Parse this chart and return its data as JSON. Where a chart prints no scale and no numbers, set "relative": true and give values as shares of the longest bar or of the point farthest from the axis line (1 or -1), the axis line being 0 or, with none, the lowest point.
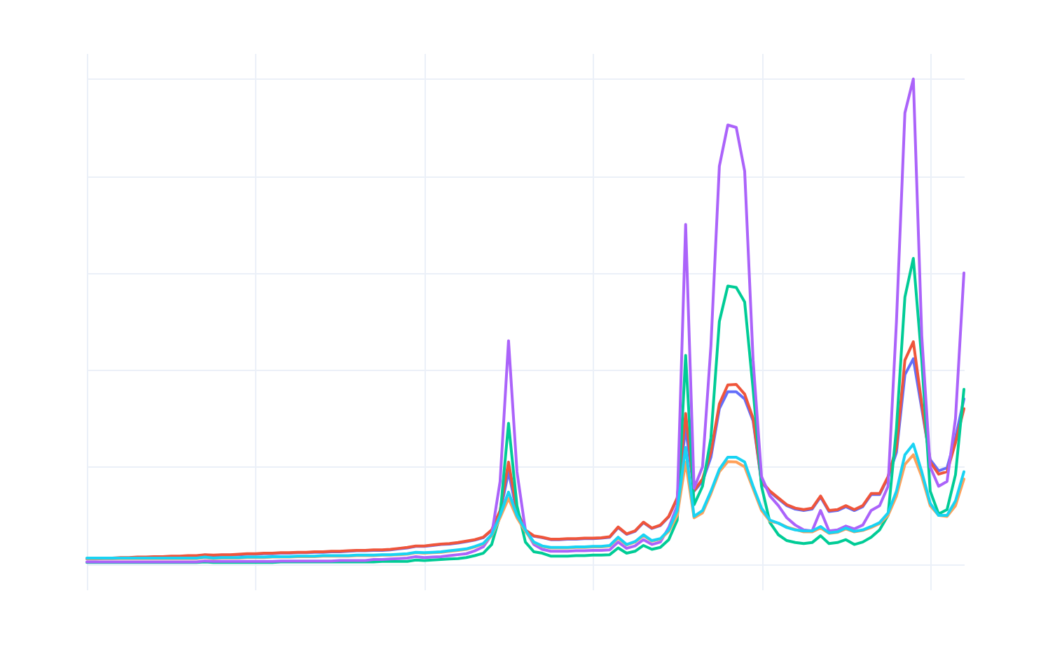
{
  "chart_data": {
    "type": "line",
    "relative": true,
    "grid": true,
    "categories": [
      null,
      null,
      null,
      null,
      null,
      null,
      null,
      null,
      null,
      null,
      null,
      null,
      null,
      null,
      null,
      null,
      null,
      null,
      null,
      null,
      null,
      null,
      null,
      null,
      null,
      null,
      null,
      null,
      null,
      null,
      null,
      null,
      null,
      null,
      null,
      null,
      null,
      null,
      null,
      null,
      null,
      null,
      null,
      null,
      null,
      null,
      null,
      null,
      null,
      null,
      null,
      null,
      null,
      null,
      null,
      null,
      null,
      null,
      null,
      null,
      null,
      null,
      null,
      null,
      null,
      null,
      null,
      null,
      null,
      null,
      null,
      null,
      null,
      null,
      null,
      null,
      null,
      null,
      null,
      null,
      null,
      null,
      null,
      null,
      null,
      null,
      null,
      null,
      null,
      null,
      null,
      null,
      null,
      null,
      null,
      null,
      null,
      null,
      null,
      null,
      null,
      null,
      null,
      null,
      null
    ],
    "series": [
      {
        "color": "#636efa",
        "values": [
          0.01,
          0.01,
          0.011,
          0.011,
          0.012,
          0.012,
          0.013,
          0.013,
          0.014,
          0.014,
          0.015,
          0.015,
          0.016,
          0.016,
          0.018,
          0.017,
          0.018,
          0.018,
          0.019,
          0.02,
          0.02,
          0.021,
          0.021,
          0.022,
          0.022,
          0.023,
          0.023,
          0.024,
          0.024,
          0.025,
          0.025,
          0.026,
          0.027,
          0.027,
          0.028,
          0.028,
          0.029,
          0.031,
          0.033,
          0.036,
          0.036,
          0.038,
          0.04,
          0.041,
          0.043,
          0.046,
          0.049,
          0.054,
          0.069,
          0.105,
          0.19,
          0.105,
          0.069,
          0.057,
          0.054,
          0.05,
          0.05,
          0.051,
          0.051,
          0.052,
          0.052,
          0.053,
          0.055,
          0.075,
          0.061,
          0.067,
          0.085,
          0.073,
          0.079,
          0.097,
          0.135,
          0.28,
          0.15,
          0.17,
          0.22,
          0.32,
          0.355,
          0.355,
          0.34,
          0.295,
          0.168,
          0.148,
          0.134,
          0.12,
          0.113,
          0.11,
          0.113,
          0.138,
          0.108,
          0.11,
          0.118,
          0.11,
          0.118,
          0.143,
          0.143,
          0.178,
          0.23,
          0.39,
          0.423,
          0.32,
          0.215,
          0.192,
          0.198,
          0.26,
          0.34
        ]
      },
      {
        "color": "#ef553b",
        "values": [
          0.011,
          0.011,
          0.012,
          0.012,
          0.013,
          0.013,
          0.014,
          0.014,
          0.015,
          0.015,
          0.016,
          0.016,
          0.017,
          0.017,
          0.019,
          0.018,
          0.019,
          0.019,
          0.02,
          0.021,
          0.021,
          0.022,
          0.022,
          0.023,
          0.023,
          0.024,
          0.024,
          0.025,
          0.025,
          0.026,
          0.026,
          0.027,
          0.028,
          0.028,
          0.029,
          0.029,
          0.03,
          0.032,
          0.034,
          0.037,
          0.037,
          0.039,
          0.041,
          0.042,
          0.044,
          0.047,
          0.05,
          0.055,
          0.07,
          0.11,
          0.21,
          0.11,
          0.07,
          0.058,
          0.055,
          0.051,
          0.051,
          0.052,
          0.052,
          0.053,
          0.053,
          0.054,
          0.056,
          0.076,
          0.062,
          0.068,
          0.086,
          0.074,
          0.08,
          0.098,
          0.136,
          0.31,
          0.151,
          0.175,
          0.23,
          0.33,
          0.369,
          0.37,
          0.35,
          0.3,
          0.17,
          0.15,
          0.136,
          0.122,
          0.115,
          0.112,
          0.115,
          0.14,
          0.11,
          0.112,
          0.12,
          0.112,
          0.12,
          0.145,
          0.145,
          0.18,
          0.24,
          0.42,
          0.458,
          0.33,
          0.21,
          0.185,
          0.19,
          0.25,
          0.32
        ]
      },
      {
        "color": "#00cc96",
        "values": [
          0.003,
          0.003,
          0.003,
          0.003,
          0.003,
          0.003,
          0.003,
          0.003,
          0.003,
          0.003,
          0.003,
          0.003,
          0.003,
          0.003,
          0.004,
          0.003,
          0.003,
          0.003,
          0.003,
          0.003,
          0.003,
          0.003,
          0.003,
          0.004,
          0.004,
          0.004,
          0.004,
          0.004,
          0.004,
          0.004,
          0.004,
          0.004,
          0.004,
          0.004,
          0.004,
          0.005,
          0.005,
          0.005,
          0.005,
          0.008,
          0.007,
          0.008,
          0.009,
          0.01,
          0.011,
          0.013,
          0.017,
          0.022,
          0.04,
          0.1,
          0.29,
          0.12,
          0.045,
          0.025,
          0.022,
          0.016,
          0.016,
          0.016,
          0.017,
          0.017,
          0.018,
          0.018,
          0.019,
          0.033,
          0.022,
          0.026,
          0.038,
          0.03,
          0.034,
          0.05,
          0.09,
          0.43,
          0.122,
          0.16,
          0.26,
          0.5,
          0.573,
          0.57,
          0.54,
          0.36,
          0.16,
          0.085,
          0.06,
          0.048,
          0.044,
          0.042,
          0.044,
          0.058,
          0.042,
          0.044,
          0.05,
          0.04,
          0.045,
          0.055,
          0.07,
          0.1,
          0.28,
          0.55,
          0.63,
          0.42,
          0.15,
          0.103,
          0.112,
          0.184,
          0.36
        ]
      },
      {
        "color": "#ab63fa",
        "values": [
          0.004,
          0.004,
          0.004,
          0.004,
          0.004,
          0.004,
          0.004,
          0.004,
          0.004,
          0.004,
          0.004,
          0.004,
          0.004,
          0.004,
          0.006,
          0.005,
          0.005,
          0.005,
          0.005,
          0.005,
          0.005,
          0.005,
          0.005,
          0.006,
          0.006,
          0.006,
          0.006,
          0.006,
          0.006,
          0.006,
          0.007,
          0.007,
          0.007,
          0.007,
          0.009,
          0.009,
          0.01,
          0.011,
          0.012,
          0.015,
          0.013,
          0.014,
          0.015,
          0.017,
          0.019,
          0.021,
          0.027,
          0.035,
          0.06,
          0.17,
          0.46,
          0.19,
          0.07,
          0.04,
          0.03,
          0.026,
          0.026,
          0.026,
          0.027,
          0.027,
          0.028,
          0.028,
          0.029,
          0.045,
          0.032,
          0.037,
          0.05,
          0.04,
          0.045,
          0.075,
          0.12,
          0.7,
          0.156,
          0.2,
          0.45,
          0.82,
          0.905,
          0.9,
          0.81,
          0.42,
          0.18,
          0.14,
          0.12,
          0.095,
          0.08,
          0.07,
          0.068,
          0.11,
          0.068,
          0.07,
          0.078,
          0.072,
          0.08,
          0.11,
          0.12,
          0.16,
          0.5,
          0.93,
          1,
          0.47,
          0.2,
          0.16,
          0.17,
          0.3,
          0.6
        ]
      },
      {
        "color": "#ffa15a",
        "values": [
          0.011,
          0.011,
          0.011,
          0.011,
          0.011,
          0.011,
          0.011,
          0.011,
          0.011,
          0.011,
          0.011,
          0.011,
          0.011,
          0.011,
          0.013,
          0.011,
          0.012,
          0.012,
          0.012,
          0.013,
          0.013,
          0.013,
          0.014,
          0.014,
          0.014,
          0.015,
          0.015,
          0.015,
          0.016,
          0.016,
          0.016,
          0.016,
          0.017,
          0.017,
          0.017,
          0.018,
          0.018,
          0.019,
          0.02,
          0.023,
          0.022,
          0.023,
          0.024,
          0.026,
          0.028,
          0.03,
          0.035,
          0.041,
          0.058,
          0.095,
          0.135,
          0.095,
          0.067,
          0.044,
          0.036,
          0.033,
          0.033,
          0.033,
          0.034,
          0.034,
          0.035,
          0.035,
          0.037,
          0.053,
          0.039,
          0.045,
          0.058,
          0.047,
          0.051,
          0.067,
          0.1,
          0.21,
          0.095,
          0.105,
          0.145,
          0.19,
          0.211,
          0.21,
          0.2,
          0.155,
          0.11,
          0.088,
          0.084,
          0.076,
          0.071,
          0.066,
          0.066,
          0.074,
          0.063,
          0.065,
          0.072,
          0.066,
          0.069,
          0.075,
          0.083,
          0.1,
          0.14,
          0.205,
          0.225,
          0.18,
          0.12,
          0.1,
          0.098,
          0.12,
          0.175
        ]
      },
      {
        "color": "#19d3f3",
        "values": [
          0.012,
          0.012,
          0.012,
          0.012,
          0.012,
          0.012,
          0.012,
          0.012,
          0.012,
          0.012,
          0.012,
          0.012,
          0.012,
          0.012,
          0.014,
          0.012,
          0.013,
          0.013,
          0.013,
          0.014,
          0.014,
          0.014,
          0.015,
          0.015,
          0.015,
          0.016,
          0.016,
          0.016,
          0.017,
          0.017,
          0.017,
          0.017,
          0.018,
          0.018,
          0.018,
          0.019,
          0.019,
          0.02,
          0.021,
          0.024,
          0.023,
          0.024,
          0.025,
          0.027,
          0.029,
          0.031,
          0.036,
          0.042,
          0.06,
          0.1,
          0.148,
          0.1,
          0.07,
          0.045,
          0.037,
          0.034,
          0.034,
          0.034,
          0.035,
          0.035,
          0.036,
          0.036,
          0.038,
          0.055,
          0.04,
          0.046,
          0.06,
          0.048,
          0.052,
          0.07,
          0.11,
          0.24,
          0.098,
          0.11,
          0.15,
          0.195,
          0.22,
          0.22,
          0.21,
          0.16,
          0.115,
          0.09,
          0.084,
          0.075,
          0.07,
          0.068,
          0.068,
          0.077,
          0.064,
          0.066,
          0.074,
          0.067,
          0.07,
          0.077,
          0.085,
          0.105,
          0.15,
          0.225,
          0.247,
          0.19,
          0.125,
          0.1,
          0.1,
          0.13,
          0.19
        ]
      }
    ]
  }
}
